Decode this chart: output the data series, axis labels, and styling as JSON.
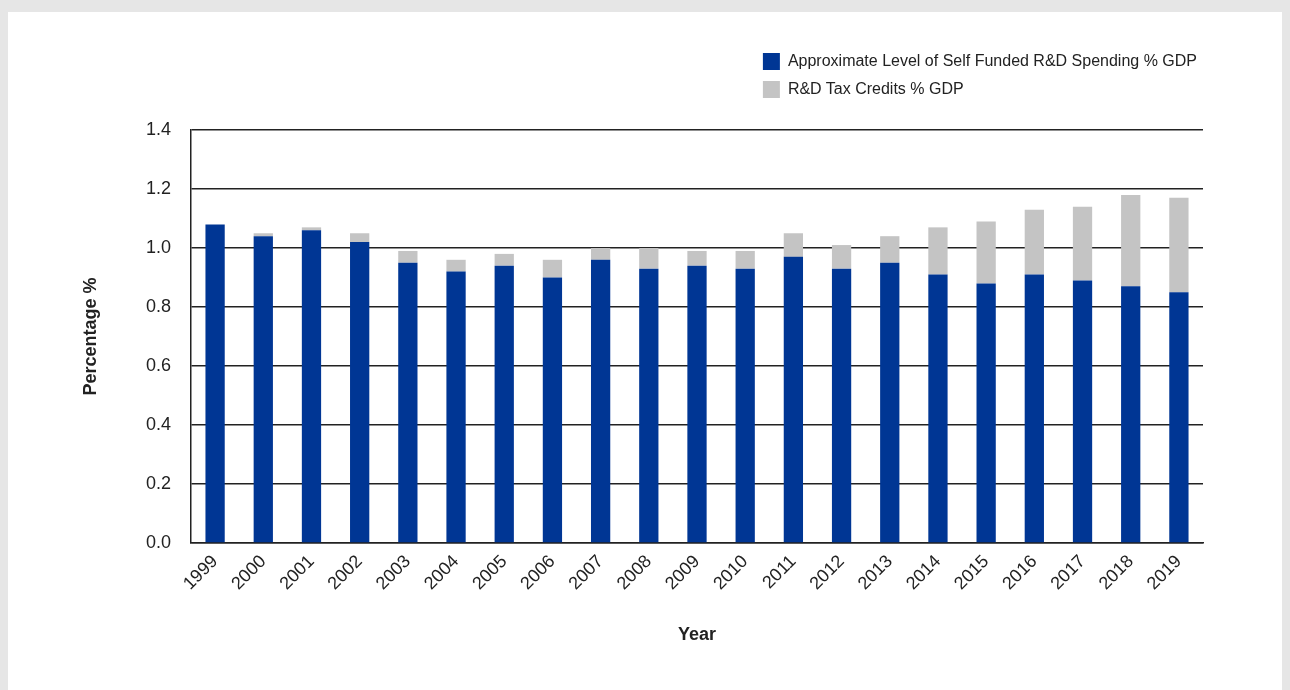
{
  "chart_data": {
    "type": "bar",
    "stacked": true,
    "xlabel": "Year",
    "ylabel": "Percentage %",
    "categories": [
      "1999",
      "2000",
      "2001",
      "2002",
      "2003",
      "2004",
      "2005",
      "2006",
      "2007",
      "2008",
      "2009",
      "2010",
      "2011",
      "2012",
      "2013",
      "2014",
      "2015",
      "2016",
      "2017",
      "2018",
      "2019"
    ],
    "series": [
      {
        "name": "Approximate Level of Self Funded R&D Spending % GDP",
        "color": "#003694",
        "values": [
          1.08,
          1.04,
          1.06,
          1.02,
          0.95,
          0.92,
          0.94,
          0.9,
          0.96,
          0.93,
          0.94,
          0.93,
          0.97,
          0.93,
          0.95,
          0.91,
          0.88,
          0.91,
          0.89,
          0.87,
          0.85
        ]
      },
      {
        "name": "R&D Tax Credits % GDP",
        "color": "#c4c4c4",
        "values": [
          null,
          0.01,
          0.01,
          0.03,
          0.04,
          0.04,
          0.04,
          0.06,
          0.04,
          0.07,
          0.05,
          0.06,
          0.08,
          0.08,
          0.09,
          0.16,
          0.21,
          0.22,
          0.25,
          0.31,
          0.32
        ]
      }
    ],
    "ylim": [
      0,
      1.4
    ],
    "yticks": [
      {
        "value": 0,
        "label": "0.0"
      },
      0.2,
      0.4,
      0.6,
      0.8,
      {
        "value": 1,
        "label": "1.0"
      },
      1.2,
      1.4
    ],
    "grid": "y",
    "legend": "top right"
  }
}
